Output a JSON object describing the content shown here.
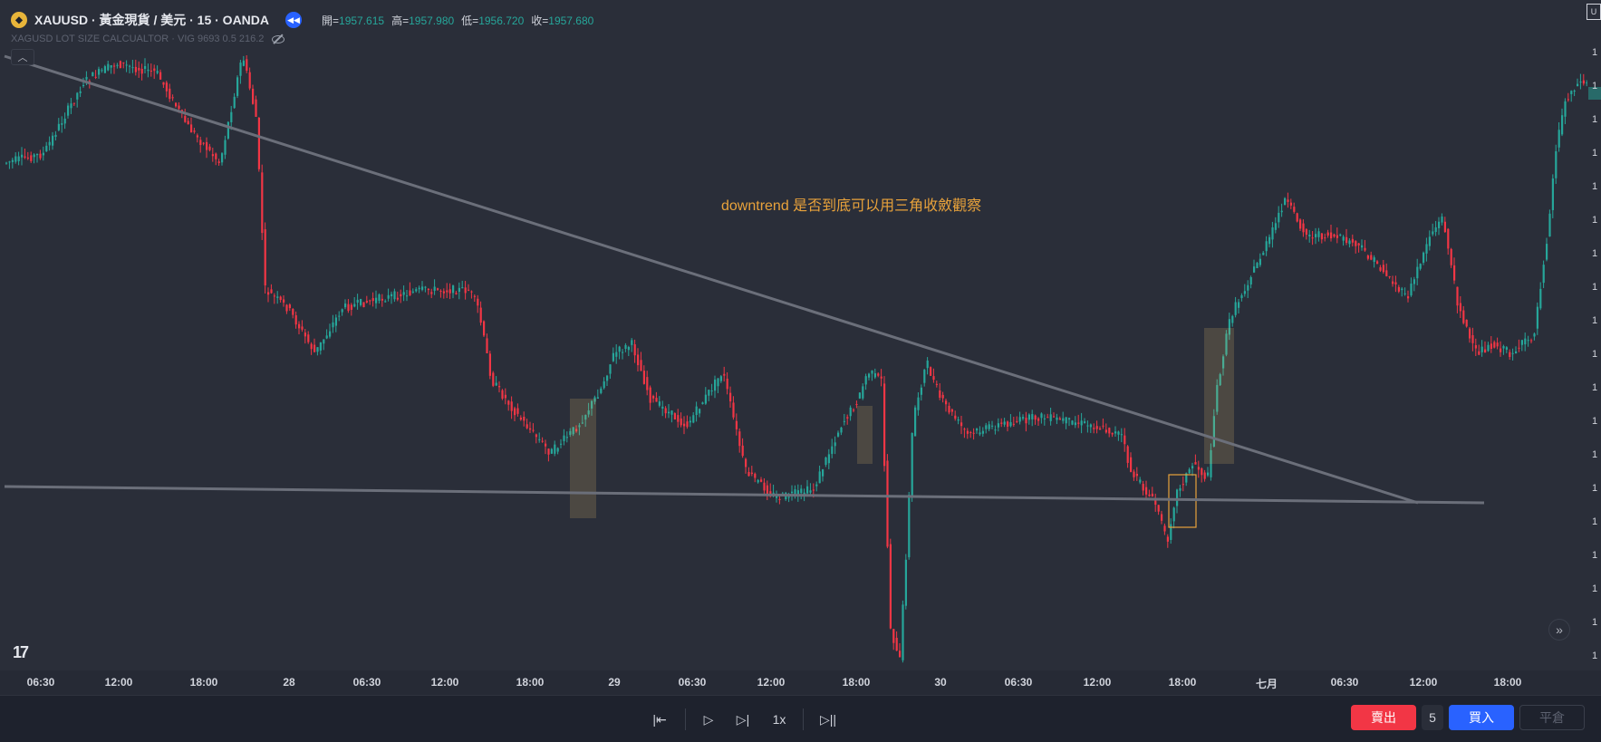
{
  "header": {
    "symbol_logo": "gold-coin-icon",
    "title": "XAUUSD · 黃金現貨 / 美元 · 15 · OANDA",
    "ohlc": [
      {
        "label": "開=",
        "value": "1957.615"
      },
      {
        "label": "高=",
        "value": "1957.980"
      },
      {
        "label": "低=",
        "value": "1956.720"
      },
      {
        "label": "收=",
        "value": "1957.680"
      }
    ]
  },
  "indicator": {
    "label": "XAGUSD LOT SIZE CALCUALTOR · VIG 9693 0.5 216.2"
  },
  "annotation": {
    "text": "downtrend 是否到底可以用三角收斂觀察",
    "color": "#e8a23b"
  },
  "xaxis": {
    "ticks": [
      "06:30",
      "12:00",
      "18:00",
      "28",
      "06:30",
      "12:00",
      "18:00",
      "29",
      "06:30",
      "12:00",
      "18:00",
      "30",
      "06:30",
      "12:00",
      "18:00",
      "七月",
      "06:30",
      "12:00",
      "18:00"
    ]
  },
  "yaxis": {
    "tag": "U",
    "label": "1"
  },
  "replay_controls": {
    "speed": "1x"
  },
  "trade": {
    "sell_label": "賣出",
    "quantity": "5",
    "buy_label": "買入",
    "close_label": "平倉"
  },
  "colors": {
    "up": "#26a69a",
    "down": "#f23645",
    "trendline": "#6b6f7a",
    "background": "#2a2e39"
  }
}
